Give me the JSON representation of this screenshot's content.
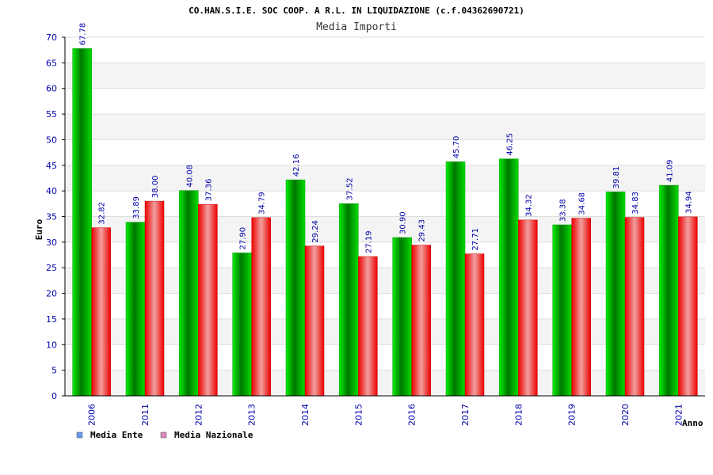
{
  "chart_data": {
    "type": "bar",
    "title": "CO.HAN.S.I.E. SOC COOP. A R.L. IN LIQUIDAZIONE (c.f.04362690721)",
    "subtitle": "Media Importi",
    "xlabel": "Anno",
    "ylabel": "Euro",
    "ylim": [
      0,
      70
    ],
    "ytick_step": 5,
    "grid": true,
    "legend_position": "bottom-left",
    "categories": [
      "2006",
      "2011",
      "2012",
      "2013",
      "2014",
      "2015",
      "2016",
      "2017",
      "2018",
      "2019",
      "2020",
      "2021"
    ],
    "series": [
      {
        "name": "Media Ente",
        "color": "#00cc00",
        "legend_color": "#6699ee",
        "values": [
          67.78,
          33.89,
          40.08,
          27.9,
          42.16,
          37.52,
          30.9,
          45.7,
          46.25,
          33.38,
          39.81,
          41.09
        ],
        "labels": [
          "67.78",
          "33.89",
          "40.08",
          "27.90",
          "42.16",
          "37.52",
          "30.90",
          "45.70",
          "46.25",
          "33.38",
          "39.81",
          "41.09"
        ]
      },
      {
        "name": "Media Nazionale",
        "color": "#ee0000",
        "legend_color": "#dd88bb",
        "values": [
          32.82,
          38.0,
          37.36,
          34.79,
          29.24,
          27.19,
          29.43,
          27.71,
          34.32,
          34.68,
          34.83,
          34.94
        ],
        "labels": [
          "32.82",
          "38.00",
          "37.36",
          "34.79",
          "29.24",
          "27.19",
          "29.43",
          "27.71",
          "34.32",
          "34.68",
          "34.83",
          "34.94"
        ]
      }
    ]
  }
}
